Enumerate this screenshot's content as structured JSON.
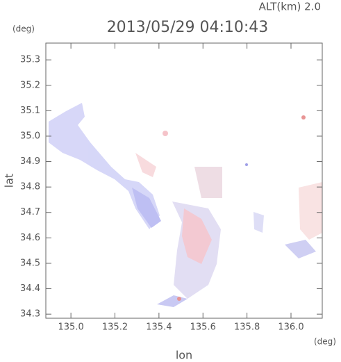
{
  "chart_data": {
    "type": "map",
    "title": "2013/05/29 04:10:43",
    "annotation": "ALT(km) 2.0",
    "y_unit": "(deg)",
    "x_unit": "(deg)",
    "x_label": "lon",
    "y_label": "lat",
    "xlim": [
      134.886,
      136.142
    ],
    "ylim": [
      34.284,
      35.366
    ],
    "xticks": [
      {
        "value": 135,
        "label": "135.0"
      },
      135.2,
      135.4,
      135.6,
      135.8,
      {
        "value": 136,
        "label": "136.0"
      }
    ],
    "yticks": [
      34.3,
      34.4,
      34.5,
      34.6,
      34.7,
      34.8,
      34.9,
      {
        "value": 35,
        "label": "35.0"
      },
      35.1,
      35.2,
      35.3
    ]
  }
}
